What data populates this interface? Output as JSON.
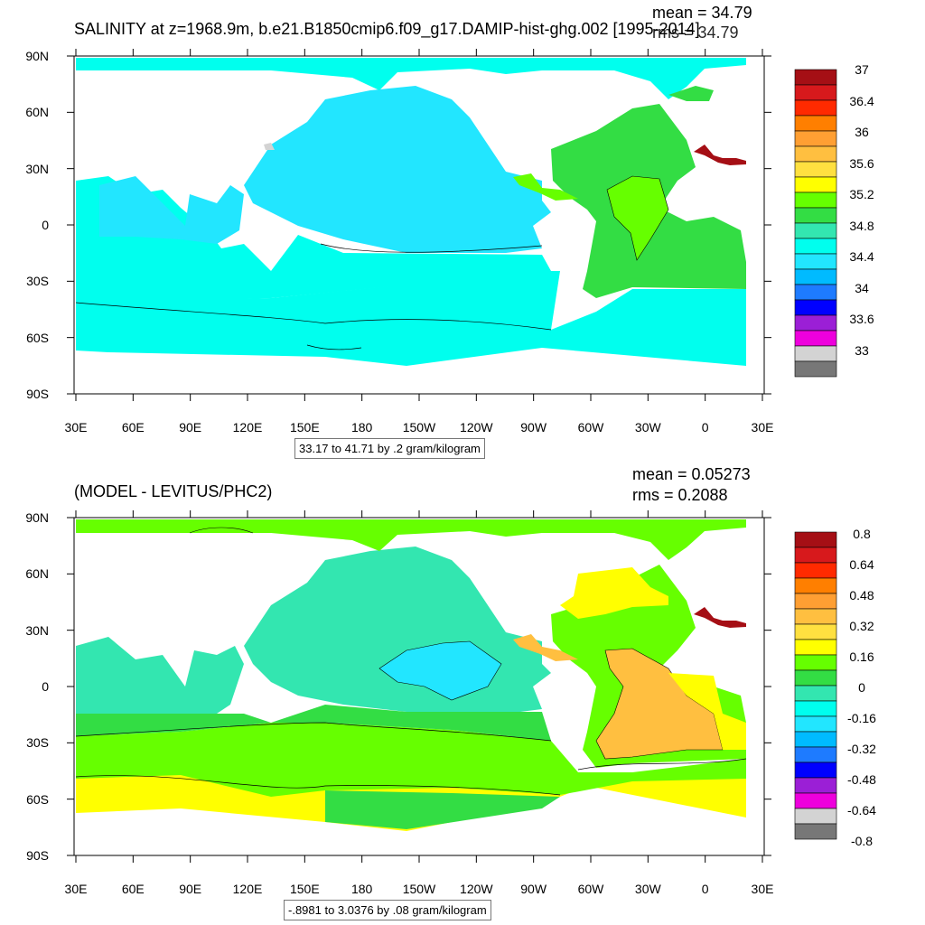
{
  "top_panel": {
    "title": "SALINITY at z=1968.9m, b.e21.B1850cmip6.f09_g17.DAMIP-hist-ghg.002 [1995-2014]",
    "mean_text": "mean = 34.79",
    "rms_text": "rms = 34.79",
    "range_text": "33.17 to 41.71 by .2 gram/kilogram",
    "lat_labels": [
      "90N",
      "60N",
      "30N",
      "0",
      "30S",
      "60S",
      "90S"
    ],
    "lon_labels": [
      "30E",
      "60E",
      "90E",
      "120E",
      "150E",
      "180",
      "150W",
      "120W",
      "90W",
      "60W",
      "30W",
      "0",
      "30E"
    ],
    "colorbar": {
      "colors": [
        "#a50f15",
        "#d7191c",
        "#ff2a00",
        "#ff7f00",
        "#ff9f33",
        "#ffbf40",
        "#ffe040",
        "#ffff00",
        "#66ff00",
        "#33dd44",
        "#33e6b0",
        "#00ffee",
        "#22e6ff",
        "#00bbff",
        "#1e7bff",
        "#0000ff",
        "#9b1fd6",
        "#ee00dd",
        "#d3d3d3",
        "#777777"
      ],
      "labels": [
        "37",
        "36.4",
        "36",
        "35.6",
        "35.2",
        "34.8",
        "34.4",
        "34",
        "33.6",
        "33"
      ]
    }
  },
  "bottom_panel": {
    "title": "(MODEL - LEVITUS/PHC2)",
    "mean_text": "mean = 0.05273",
    "rms_text": "rms = 0.2088",
    "range_text": "-.8981 to 3.0376 by .08 gram/kilogram",
    "lat_labels": [
      "90N",
      "60N",
      "30N",
      "0",
      "30S",
      "60S",
      "90S"
    ],
    "lon_labels": [
      "30E",
      "60E",
      "90E",
      "120E",
      "150E",
      "180",
      "150W",
      "120W",
      "90W",
      "60W",
      "30W",
      "0",
      "30E"
    ],
    "colorbar": {
      "colors": [
        "#a50f15",
        "#d7191c",
        "#ff2a00",
        "#ff7f00",
        "#ff9f33",
        "#ffbf40",
        "#ffe040",
        "#ffff00",
        "#66ff00",
        "#33dd44",
        "#33e6b0",
        "#00ffee",
        "#22e6ff",
        "#00bbff",
        "#1e7bff",
        "#0000ff",
        "#9b1fd6",
        "#ee00dd",
        "#d3d3d3",
        "#777777"
      ],
      "labels": [
        "0.8",
        "0.64",
        "0.48",
        "0.32",
        "0.16",
        "0",
        "-0.16",
        "-0.32",
        "-0.48",
        "-0.64",
        "-0.8"
      ]
    }
  }
}
